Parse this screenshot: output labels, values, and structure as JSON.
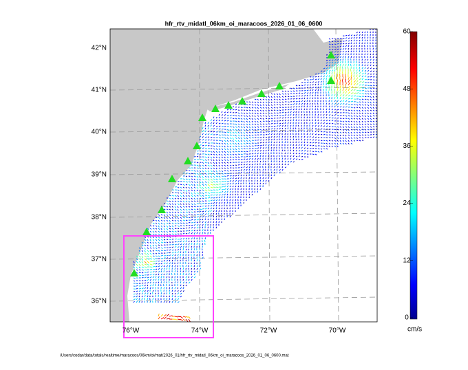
{
  "map": {
    "title": "hfr_rtv_midatl_06km_oi_maracoos_2026_01_06_0600",
    "lat_labels": [
      "42°N",
      "41°N",
      "40°N",
      "39°N",
      "38°N",
      "37°N",
      "36°N"
    ],
    "lon_labels": [
      "76°W",
      "74°W",
      "72°W",
      "70°W"
    ],
    "colorbar": {
      "lim": [
        0,
        60
      ],
      "ticks": [
        0,
        12,
        24,
        36,
        48,
        60
      ],
      "unit": "cm/s"
    },
    "footer": "/Users/codar/data/totals/realtime/maracoos/06km/oi/mat/2026_01/hfr_rtv_midatl_06km_oi_maracoos_2026_01_06_0600.mat"
  }
}
